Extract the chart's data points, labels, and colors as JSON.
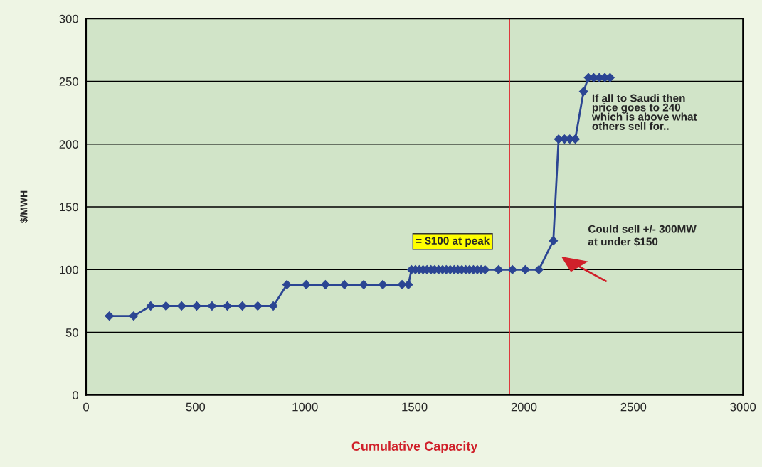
{
  "chart_data": {
    "type": "line",
    "xlabel": "Cumulative Capacity",
    "ylabel": "$/MWH",
    "x": [
      106,
      217,
      295,
      365,
      436,
      505,
      575,
      645,
      714,
      784,
      855,
      917,
      1005,
      1093,
      1180,
      1268,
      1355,
      1443,
      1472,
      1486,
      1504,
      1522,
      1539,
      1557,
      1575,
      1592,
      1610,
      1628,
      1645,
      1663,
      1681,
      1698,
      1716,
      1734,
      1751,
      1769,
      1787,
      1804,
      1822,
      1884,
      1947,
      2006,
      2068,
      2134,
      2158,
      2185,
      2209,
      2234,
      2272,
      2294,
      2318,
      2344,
      2369,
      2393
    ],
    "series": [
      {
        "color": "#2b4593",
        "values": [
          63,
          63,
          71,
          71,
          71,
          71,
          71,
          71,
          71,
          71,
          71,
          88,
          88,
          88,
          88,
          88,
          88,
          88,
          88,
          100,
          100,
          100,
          100,
          100,
          100,
          100,
          100,
          100,
          100,
          100,
          100,
          100,
          100,
          100,
          100,
          100,
          100,
          100,
          100,
          100,
          100,
          100,
          100,
          123,
          204,
          204,
          204,
          204,
          242,
          253,
          253,
          253,
          253,
          253
        ]
      }
    ],
    "xlim": [
      0,
      3000
    ],
    "xticks": [
      0,
      500,
      1000,
      1500,
      2000,
      2500,
      3000
    ],
    "ylim": [
      0,
      300
    ],
    "yticks": [
      0,
      50,
      100,
      150,
      200,
      250,
      300
    ],
    "grid": "y",
    "marker": "diamond",
    "line_style": "solid",
    "ref_lines": [
      {
        "axis": "x",
        "value": 1934,
        "color": "#e0202a"
      }
    ],
    "annotations": [
      "= $100 at peak",
      "Could sell +/- 300MW\nat under $150",
      "If all to Saudi then\nprice goes to 240\nwhich is above what\nothers sell for.."
    ]
  }
}
